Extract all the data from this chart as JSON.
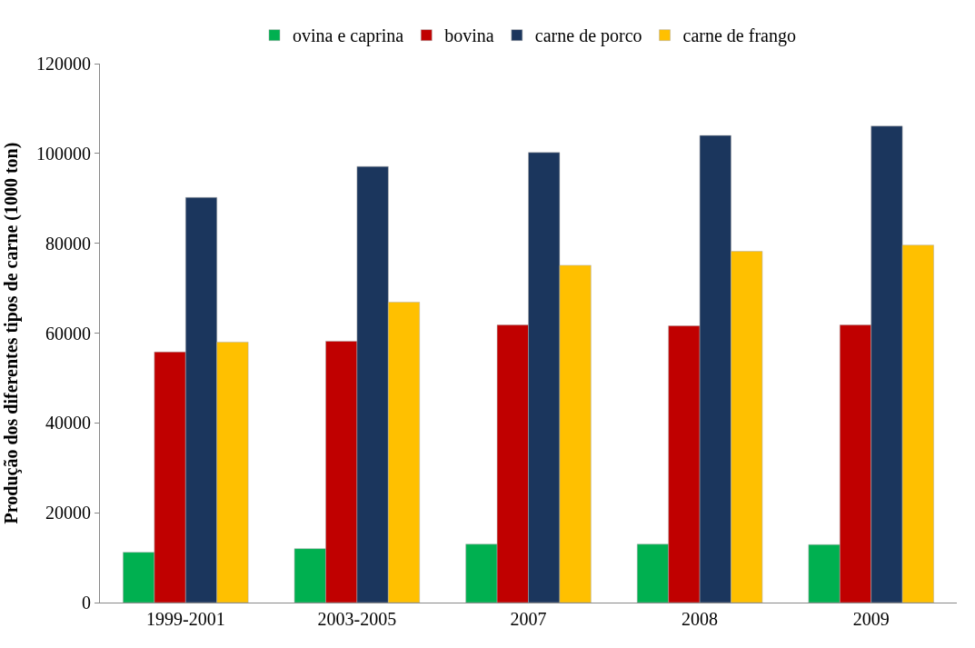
{
  "chart_data": {
    "type": "bar",
    "ylabel": "Produção dos diferentes tipos de carne (1000 ton)",
    "categories": [
      "1999-2001",
      "2003-2005",
      "2007",
      "2008",
      "2009"
    ],
    "series": [
      {
        "name": "ovina e caprina",
        "color": "#00b050",
        "values": [
          11200,
          12000,
          13000,
          13000,
          12900
        ]
      },
      {
        "name": "bovina",
        "color": "#c00000",
        "values": [
          55800,
          58200,
          61800,
          61600,
          61800
        ]
      },
      {
        "name": "carne de porco",
        "color": "#1b365d",
        "values": [
          90200,
          97100,
          100200,
          104000,
          106100
        ]
      },
      {
        "name": "carne de frango",
        "color": "#ffc000",
        "values": [
          58000,
          66900,
          75100,
          78200,
          79600
        ]
      }
    ],
    "ylim": [
      0,
      120000
    ],
    "yticks": [
      0,
      20000,
      40000,
      60000,
      80000,
      100000,
      120000
    ],
    "legend": "top"
  }
}
